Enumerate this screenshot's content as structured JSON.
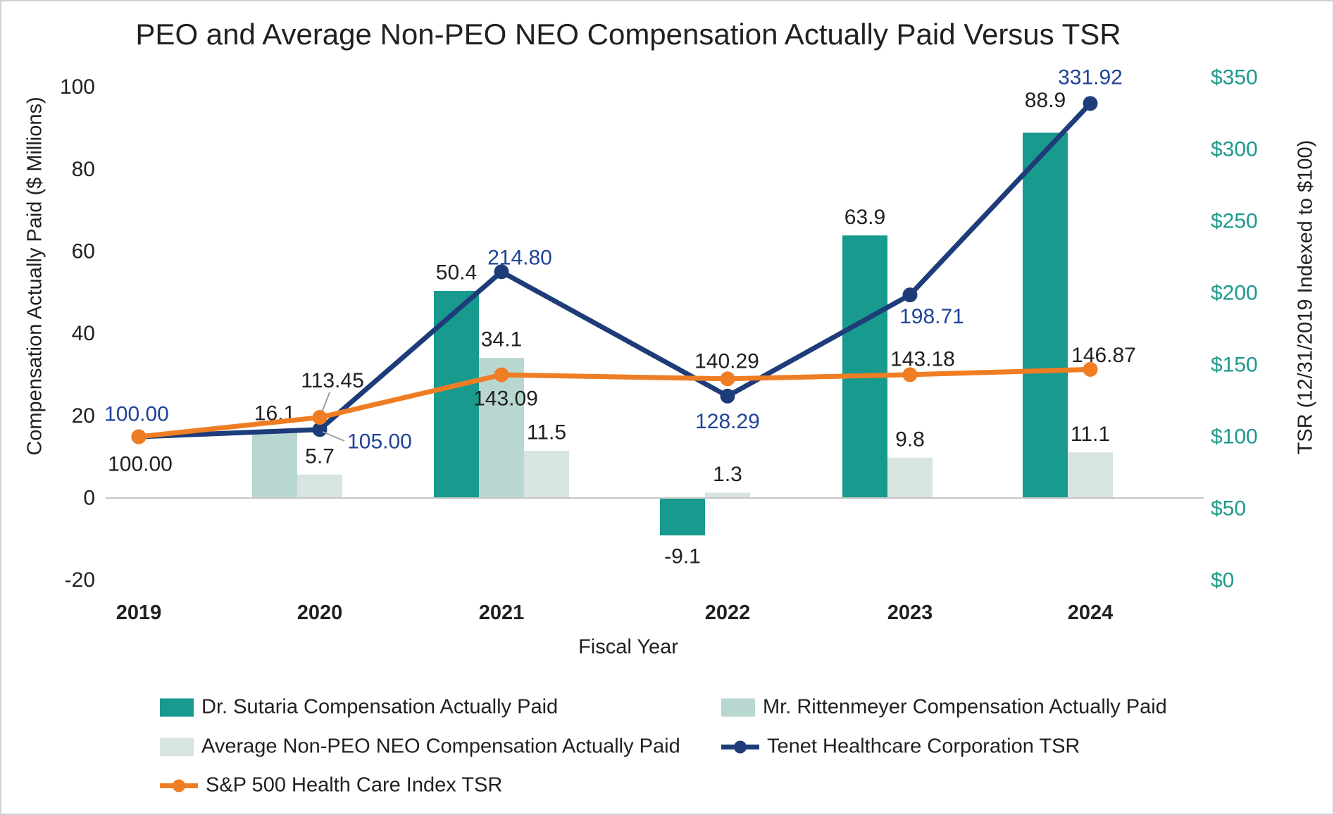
{
  "title": "PEO and Average Non-PEO NEO Compensation Actually Paid Versus TSR",
  "axes": {
    "x_label": "Fiscal Year",
    "y_left_label": "Compensation Actually Paid ($ Millions)",
    "y_right_label": "TSR (12/31/2019 Indexed to $100)",
    "y_left_ticks": [
      100,
      80,
      60,
      40,
      20,
      0,
      -20
    ],
    "y_right_tick_labels": [
      "$350",
      "$300",
      "$250",
      "$200",
      "$150",
      "$100",
      "$50",
      "$0"
    ],
    "y_right_tick_values": [
      350,
      300,
      250,
      200,
      150,
      100,
      50,
      0
    ]
  },
  "chart_data": {
    "type": "combo_bar_line",
    "categories": [
      "2019",
      "2020",
      "2021",
      "2022",
      "2023",
      "2024"
    ],
    "xlabel": "Fiscal Year",
    "ylabel_left": "Compensation Actually Paid ($ Millions)",
    "ylabel_right": "TSR (12/31/2019 Indexed to $100)",
    "left_axis_range": [
      -20,
      100
    ],
    "right_axis_range": [
      0,
      350
    ],
    "grid": "zero-baseline-only",
    "legend_position": "bottom",
    "series": [
      {
        "name": "Dr. Sutaria Compensation Actually Paid",
        "type": "bar",
        "axis": "left",
        "color": "#189a8e",
        "values": [
          null,
          null,
          50.4,
          -9.1,
          63.9,
          88.9
        ],
        "labels": [
          "",
          "",
          "50.4",
          "-9.1",
          "63.9",
          "88.9"
        ],
        "label_color": "#231f20"
      },
      {
        "name": "Mr. Rittenmeyer Compensation Actually Paid",
        "type": "bar",
        "axis": "left",
        "color": "#b9d7d1",
        "values": [
          null,
          16.1,
          34.1,
          null,
          null,
          null
        ],
        "labels": [
          "",
          "16.1",
          "34.1",
          "",
          "",
          ""
        ],
        "label_color": "#231f20"
      },
      {
        "name": "Average Non-PEO NEO Compensation Actually Paid",
        "type": "bar",
        "axis": "left",
        "color": "#d7e4e0",
        "values": [
          null,
          5.7,
          11.5,
          1.3,
          9.8,
          11.1
        ],
        "labels": [
          "",
          "5.7",
          "11.5",
          "1.3",
          "9.8",
          "11.1"
        ],
        "label_color": "#231f20"
      },
      {
        "name": "Tenet Healthcare Corporation TSR",
        "type": "line",
        "axis": "right",
        "color": "#1e3c7a",
        "values": [
          100.0,
          105.0,
          214.8,
          128.29,
          198.71,
          331.92
        ],
        "labels": [
          "100.00",
          "105.00",
          "214.80",
          "128.29",
          "198.71",
          "331.92"
        ],
        "label_color": "#1f4399"
      },
      {
        "name": "S&P 500 Health Care Index TSR",
        "type": "line",
        "axis": "right",
        "color": "#ef7d23",
        "values": [
          100.0,
          113.45,
          143.09,
          140.29,
          143.18,
          146.87
        ],
        "labels": [
          "100.00",
          "113.45",
          "143.09",
          "140.29",
          "143.18",
          "146.87"
        ],
        "label_color": "#231f20"
      }
    ],
    "callouts": [
      "113.45",
      "105.00"
    ],
    "baseline_color": "#c6c6c6",
    "right_tick_color": "#1b9a8c"
  }
}
